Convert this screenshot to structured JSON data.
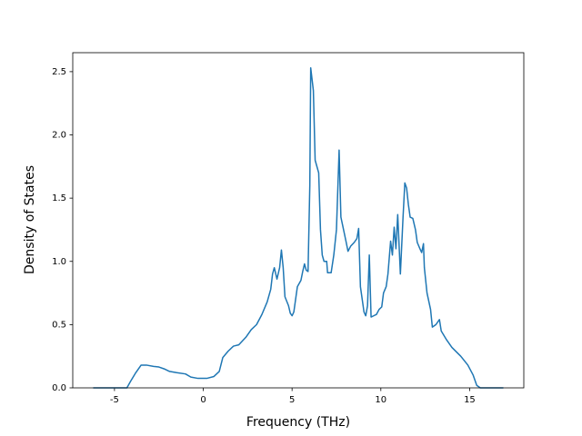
{
  "chart_data": {
    "type": "line",
    "xlabel": "Frequency (THz)",
    "ylabel": "Density of States",
    "color": "#1f77b4",
    "x": [
      -6.2,
      -4.3,
      -4.1,
      -3.8,
      -3.5,
      -3.2,
      -2.8,
      -2.5,
      -2.2,
      -1.9,
      -1.5,
      -1.0,
      -0.7,
      -0.3,
      0.2,
      0.6,
      0.9,
      1.1,
      1.4,
      1.7,
      2.0,
      2.4,
      2.7,
      3.0,
      3.3,
      3.6,
      3.8,
      3.9,
      4.0,
      4.15,
      4.3,
      4.4,
      4.5,
      4.6,
      4.8,
      4.9,
      5.0,
      5.1,
      5.2,
      5.3,
      5.5,
      5.6,
      5.7,
      5.8,
      5.9,
      6.0,
      6.05,
      6.2,
      6.3,
      6.5,
      6.6,
      6.7,
      6.8,
      6.95,
      7.0,
      7.2,
      7.35,
      7.5,
      7.65,
      7.75,
      7.9,
      8.05,
      8.15,
      8.3,
      8.5,
      8.65,
      8.75,
      8.85,
      8.95,
      9.05,
      9.15,
      9.25,
      9.35,
      9.45,
      9.6,
      9.75,
      9.9,
      10.05,
      10.15,
      10.3,
      10.4,
      10.55,
      10.65,
      10.75,
      10.85,
      10.95,
      11.1,
      11.25,
      11.35,
      11.45,
      11.55,
      11.65,
      11.8,
      11.95,
      12.05,
      12.2,
      12.3,
      12.4,
      12.45,
      12.6,
      12.8,
      12.9,
      13.1,
      13.3,
      13.4,
      13.7,
      14.0,
      14.5,
      14.9,
      15.2,
      15.4,
      15.6,
      16.9
    ],
    "values": [
      0,
      0,
      0.05,
      0.12,
      0.18,
      0.18,
      0.17,
      0.165,
      0.15,
      0.13,
      0.12,
      0.11,
      0.085,
      0.075,
      0.075,
      0.09,
      0.13,
      0.24,
      0.29,
      0.33,
      0.34,
      0.4,
      0.46,
      0.5,
      0.58,
      0.68,
      0.78,
      0.9,
      0.95,
      0.86,
      0.95,
      1.09,
      0.95,
      0.72,
      0.65,
      0.59,
      0.57,
      0.6,
      0.7,
      0.8,
      0.85,
      0.92,
      0.98,
      0.93,
      0.92,
      1.6,
      2.53,
      2.35,
      1.8,
      1.7,
      1.25,
      1.05,
      1.0,
      1.0,
      0.91,
      0.91,
      1.05,
      1.25,
      1.88,
      1.35,
      1.25,
      1.15,
      1.08,
      1.12,
      1.15,
      1.18,
      1.26,
      0.8,
      0.7,
      0.6,
      0.57,
      0.65,
      1.05,
      0.56,
      0.57,
      0.58,
      0.62,
      0.64,
      0.75,
      0.8,
      0.9,
      1.16,
      1.05,
      1.27,
      1.1,
      1.37,
      0.9,
      1.35,
      1.62,
      1.58,
      1.45,
      1.35,
      1.34,
      1.25,
      1.15,
      1.1,
      1.07,
      1.14,
      0.95,
      0.75,
      0.62,
      0.48,
      0.5,
      0.54,
      0.45,
      0.38,
      0.32,
      0.25,
      0.18,
      0.1,
      0.02,
      0,
      0
    ],
    "xlim": [
      -7.35,
      18.05
    ],
    "ylim": [
      0,
      2.65
    ],
    "xticks": [
      -5,
      0,
      5,
      10,
      15
    ],
    "yticks": [
      {
        "value": 0,
        "label": "0.0"
      },
      0.5,
      {
        "value": 1,
        "label": "1.0"
      },
      1.5,
      {
        "value": 2,
        "label": "2.0"
      },
      2.5
    ]
  }
}
